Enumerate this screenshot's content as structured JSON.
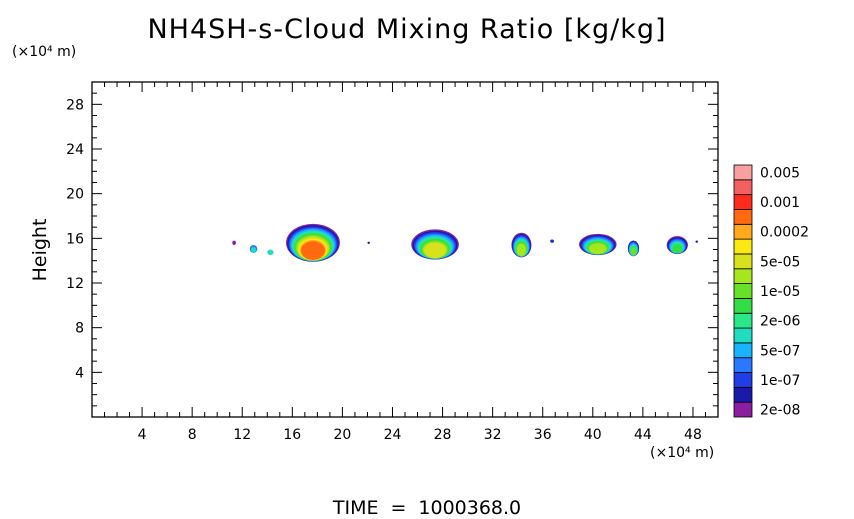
{
  "title": "NH4SH-s-Cloud Mixing Ratio [kg/kg]",
  "footer": {
    "label": "TIME",
    "equals": "=",
    "value": "1000368.0"
  },
  "chart_data": {
    "type": "heatmap",
    "title": "NH4SH-s-Cloud Mixing Ratio [kg/kg]",
    "xlabel": "",
    "x_unit_label": "(×10⁴ m)",
    "ylabel": "Height",
    "y_unit_label": "(×10⁴ m)",
    "xlim": [
      0,
      50
    ],
    "ylim": [
      0,
      30
    ],
    "x_ticks": [
      4,
      8,
      12,
      16,
      20,
      24,
      28,
      32,
      36,
      40,
      44,
      48
    ],
    "y_ticks": [
      4,
      8,
      12,
      16,
      20,
      24,
      28
    ],
    "x_tick_labels": [
      "4",
      "8",
      "12",
      "16",
      "20",
      "24",
      "28",
      "32",
      "36",
      "40",
      "44",
      "48"
    ],
    "y_tick_labels": [
      "4",
      "8",
      "12",
      "16",
      "20",
      "24",
      "28"
    ],
    "grid": false,
    "colorbar": {
      "position": "right",
      "levels": [
        {
          "color": "#8a1fa0",
          "label": "2e-08"
        },
        {
          "color": "#1a1aa8",
          "label": ""
        },
        {
          "color": "#1f3ee8",
          "label": "1e-07"
        },
        {
          "color": "#2a78ff",
          "label": ""
        },
        {
          "color": "#18b4ff",
          "label": "5e-07"
        },
        {
          "color": "#20dcc0",
          "label": ""
        },
        {
          "color": "#2ae88a",
          "label": "2e-06"
        },
        {
          "color": "#33dd44",
          "label": ""
        },
        {
          "color": "#66e028",
          "label": "1e-05"
        },
        {
          "color": "#a6e61e",
          "label": ""
        },
        {
          "color": "#d8e21c",
          "label": "5e-05"
        },
        {
          "color": "#fbea12",
          "label": ""
        },
        {
          "color": "#ffaa1a",
          "label": "0.0002"
        },
        {
          "color": "#ff6a10",
          "label": ""
        },
        {
          "color": "#ff2a1a",
          "label": "0.001"
        },
        {
          "color": "#f26060",
          "label": ""
        },
        {
          "color": "#f6a0a0",
          "label": "0.005"
        }
      ]
    },
    "cloud_cells": [
      {
        "x": [
          11.2,
          11.5
        ],
        "y": [
          15.4,
          15.8
        ],
        "levels": [
          0
        ]
      },
      {
        "x": [
          12.6,
          13.2
        ],
        "y": [
          14.7,
          15.4
        ],
        "levels": [
          3,
          5
        ]
      },
      {
        "x": [
          14.0,
          14.5
        ],
        "y": [
          14.5,
          15.0
        ],
        "levels": [
          5
        ]
      },
      {
        "x": [
          15.5,
          19.8
        ],
        "y": [
          13.9,
          17.3
        ],
        "levels": [
          0,
          1,
          2,
          3,
          4,
          5,
          6,
          7,
          8,
          9,
          10,
          11,
          12,
          13
        ]
      },
      {
        "x": [
          22.0,
          22.2
        ],
        "y": [
          15.5,
          15.7
        ],
        "levels": [
          1
        ]
      },
      {
        "x": [
          25.5,
          29.3
        ],
        "y": [
          14.1,
          16.8
        ],
        "levels": [
          0,
          1,
          2,
          3,
          4,
          5,
          6,
          7,
          8,
          9,
          10
        ]
      },
      {
        "x": [
          33.5,
          35.1
        ],
        "y": [
          14.3,
          16.5
        ],
        "levels": [
          0,
          1,
          2,
          3,
          4,
          5,
          6,
          7,
          8,
          9
        ]
      },
      {
        "x": [
          36.6,
          36.9
        ],
        "y": [
          15.6,
          15.9
        ],
        "levels": [
          1,
          2
        ]
      },
      {
        "x": [
          38.9,
          41.9
        ],
        "y": [
          14.5,
          16.4
        ],
        "levels": [
          0,
          1,
          2,
          3,
          4,
          5,
          6,
          7,
          8,
          9
        ]
      },
      {
        "x": [
          42.8,
          43.7
        ],
        "y": [
          14.4,
          15.8
        ],
        "levels": [
          1,
          2,
          3,
          4,
          5,
          6,
          7,
          8
        ]
      },
      {
        "x": [
          45.9,
          47.6
        ],
        "y": [
          14.6,
          16.2
        ],
        "levels": [
          0,
          1,
          2,
          3,
          4,
          5,
          6,
          7
        ]
      },
      {
        "x": [
          48.2,
          48.4
        ],
        "y": [
          15.6,
          15.8
        ],
        "levels": [
          1
        ]
      }
    ]
  }
}
